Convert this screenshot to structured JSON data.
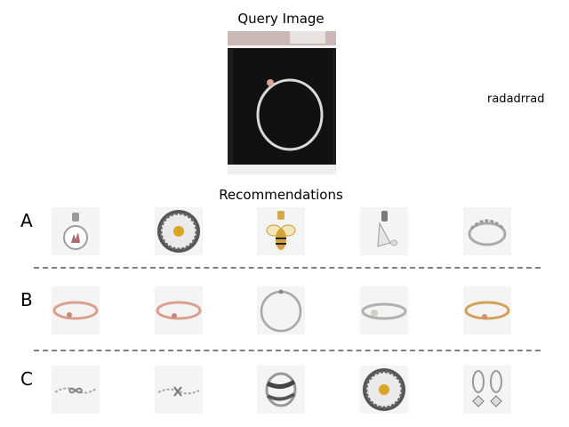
{
  "query": {
    "title": "Query Image",
    "image_icon": "bracelet-in-box-photo"
  },
  "user_label": "radadrrad",
  "recommendations": {
    "title": "Recommendations",
    "rows": [
      {
        "label": "A",
        "items": [
          "pendant-charm-icon",
          "daisy-charm-icon",
          "bee-charm-icon",
          "heart-dangle-charm-icon",
          "stacked-ring-icon"
        ]
      },
      {
        "label": "B",
        "items": [
          "rose-gold-bangle-icon",
          "rose-gold-bangle-icon",
          "silver-bangle-icon",
          "silver-bangle-icon",
          "gold-bangle-icon"
        ]
      },
      {
        "label": "C",
        "items": [
          "infinity-chain-bracelet-icon",
          "heart-chain-bracelet-icon",
          "wrap-ring-icon",
          "daisy-charm-icon",
          "hoop-earrings-icon"
        ]
      }
    ]
  }
}
